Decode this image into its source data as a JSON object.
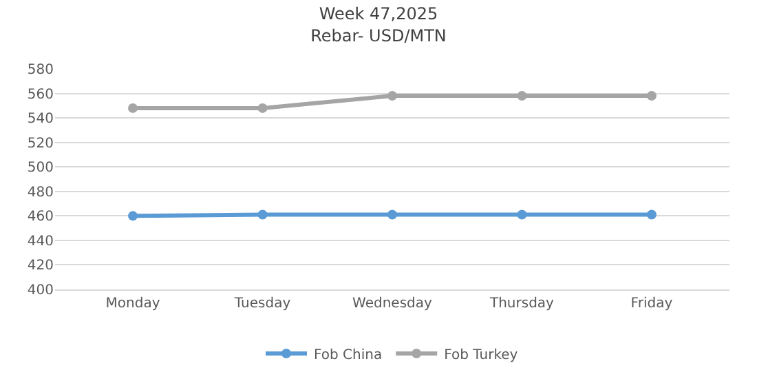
{
  "chart_data": {
    "type": "line",
    "title": "Week 47,2025",
    "subtitle": "Rebar- USD/MTN",
    "categories": [
      "Monday",
      "Tuesday",
      "Wednesday",
      "Thursday",
      "Friday"
    ],
    "series": [
      {
        "name": "Fob China",
        "color": "#5b9bd5",
        "values": [
          460,
          461,
          461,
          461,
          461
        ]
      },
      {
        "name": "Fob Turkey",
        "color": "#a5a5a5",
        "values": [
          548,
          548,
          558,
          558,
          558
        ]
      }
    ],
    "ylim": [
      400,
      580
    ],
    "yticks": [
      400,
      420,
      440,
      460,
      480,
      500,
      520,
      540,
      560,
      580
    ],
    "grid": "y",
    "legend": "bottom",
    "marker": "circle",
    "line_style": "solid"
  }
}
